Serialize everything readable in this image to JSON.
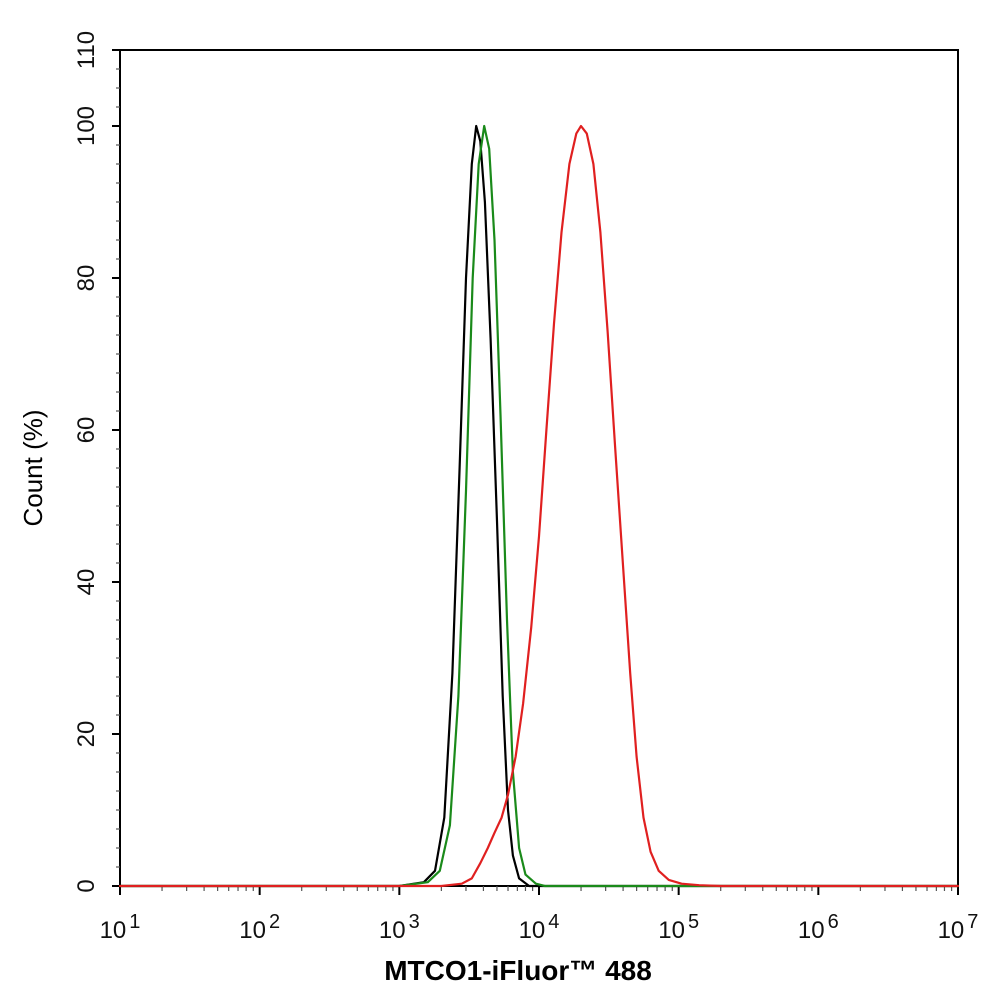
{
  "chart_data": {
    "type": "line",
    "title": "",
    "xlabel": "MTCO1-iFluor™ 488",
    "ylabel": "Count  (%)",
    "x_scale": "log10",
    "xlim": [
      10,
      10000000
    ],
    "ylim": [
      0,
      110
    ],
    "grid": false,
    "legend": "none",
    "x_ticks": [
      {
        "value": 10,
        "base": "10",
        "exp": "1"
      },
      {
        "value": 100,
        "base": "10",
        "exp": "2"
      },
      {
        "value": 1000,
        "base": "10",
        "exp": "3"
      },
      {
        "value": 10000,
        "base": "10",
        "exp": "4"
      },
      {
        "value": 100000,
        "base": "10",
        "exp": "5"
      },
      {
        "value": 1000000,
        "base": "10",
        "exp": "6"
      },
      {
        "value": 10000000,
        "base": "10",
        "exp": "7"
      }
    ],
    "y_ticks": [
      {
        "value": 0,
        "label": "0"
      },
      {
        "value": 20,
        "label": "20"
      },
      {
        "value": 40,
        "label": "40"
      },
      {
        "value": 60,
        "label": "60"
      },
      {
        "value": 80,
        "label": "80"
      },
      {
        "value": 100,
        "label": "100"
      },
      {
        "value": 110,
        "label": "110"
      }
    ],
    "series": [
      {
        "color": "#000000",
        "points": [
          [
            10,
            0
          ],
          [
            1000,
            0
          ],
          [
            1500,
            0.5
          ],
          [
            1800,
            2
          ],
          [
            2100,
            9
          ],
          [
            2400,
            28
          ],
          [
            2700,
            55
          ],
          [
            3000,
            80
          ],
          [
            3300,
            95
          ],
          [
            3550,
            100
          ],
          [
            3800,
            98
          ],
          [
            4100,
            90
          ],
          [
            4500,
            72
          ],
          [
            5000,
            48
          ],
          [
            5500,
            25
          ],
          [
            6000,
            10
          ],
          [
            6500,
            4
          ],
          [
            7200,
            1
          ],
          [
            8500,
            0
          ],
          [
            10000000,
            0
          ]
        ]
      },
      {
        "color": "#1a8a1a",
        "points": [
          [
            10,
            0
          ],
          [
            1000,
            0
          ],
          [
            1600,
            0.5
          ],
          [
            1950,
            2
          ],
          [
            2300,
            8
          ],
          [
            2650,
            25
          ],
          [
            3000,
            52
          ],
          [
            3350,
            80
          ],
          [
            3700,
            95
          ],
          [
            4050,
            100
          ],
          [
            4400,
            97
          ],
          [
            4800,
            85
          ],
          [
            5300,
            62
          ],
          [
            5900,
            35
          ],
          [
            6500,
            15
          ],
          [
            7200,
            5
          ],
          [
            8000,
            1.5
          ],
          [
            9500,
            0.3
          ],
          [
            11000,
            0
          ],
          [
            10000000,
            0
          ]
        ]
      },
      {
        "color": "#e02020",
        "points": [
          [
            10,
            0
          ],
          [
            2000,
            0
          ],
          [
            2800,
            0.3
          ],
          [
            3300,
            1
          ],
          [
            3800,
            3
          ],
          [
            4300,
            5
          ],
          [
            4800,
            7
          ],
          [
            5400,
            9
          ],
          [
            6000,
            12
          ],
          [
            6800,
            17
          ],
          [
            7700,
            24
          ],
          [
            8800,
            34
          ],
          [
            10000,
            46
          ],
          [
            11300,
            60
          ],
          [
            12800,
            74
          ],
          [
            14500,
            86
          ],
          [
            16500,
            95
          ],
          [
            18500,
            99
          ],
          [
            20000,
            100
          ],
          [
            22000,
            99
          ],
          [
            24500,
            95
          ],
          [
            27500,
            86
          ],
          [
            31000,
            73
          ],
          [
            35000,
            58
          ],
          [
            40000,
            42
          ],
          [
            45000,
            28
          ],
          [
            50000,
            17
          ],
          [
            56000,
            9
          ],
          [
            63000,
            4.5
          ],
          [
            72000,
            2
          ],
          [
            85000,
            0.8
          ],
          [
            105000,
            0.3
          ],
          [
            140000,
            0.1
          ],
          [
            200000,
            0
          ],
          [
            10000000,
            0
          ]
        ]
      }
    ]
  }
}
